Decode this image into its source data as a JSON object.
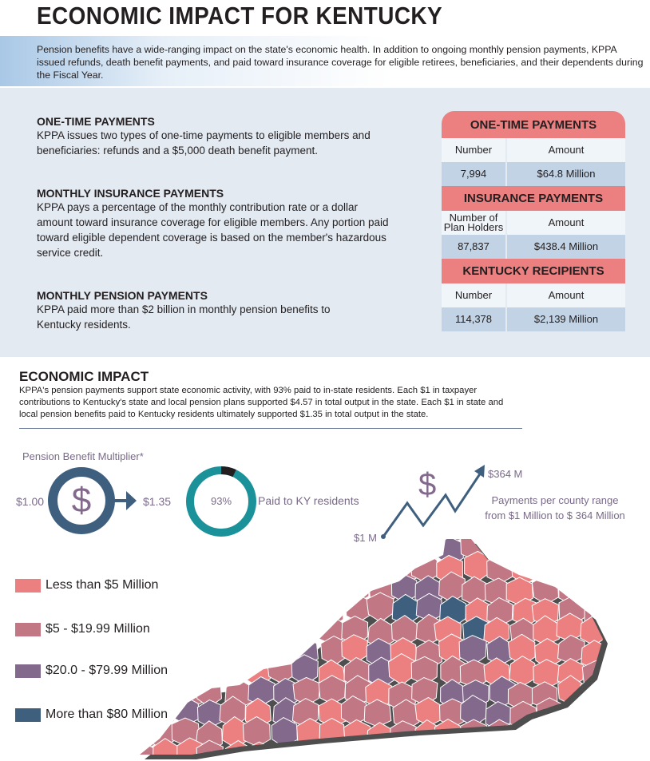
{
  "title": "ECONOMIC IMPACT FOR KENTUCKY",
  "intro": "Pension benefits have a wide-ranging impact on the state's economic health. In addition to ongoing monthly pension payments, KPPA issued refunds, death benefit payments, and paid toward insurance coverage for eligible retirees, beneficiaries, and their dependents during the Fiscal Year.",
  "sections": [
    {
      "heading": "ONE-TIME PAYMENTS",
      "body": "KPPA issues two types of one-time payments to eligible members and beneficiaries: refunds and a $5,000 death benefit payment."
    },
    {
      "heading": "MONTHLY INSURANCE PAYMENTS",
      "body": "KPPA pays a percentage of the monthly contribution rate or a dollar amount toward insurance coverage for eligible members. Any portion paid toward eligible dependent coverage is based on the member's hazardous service credit."
    },
    {
      "heading": "MONTHLY PENSION PAYMENTS",
      "body": "KPPA paid more than $2 billion in monthly pension benefits to Kentucky residents."
    }
  ],
  "tables": [
    {
      "title": "ONE-TIME PAYMENTS",
      "col1": "Number",
      "col2": "Amount",
      "number": "7,994",
      "amount": "$64.8 Million"
    },
    {
      "title": "INSURANCE PAYMENTS",
      "col1": "Number of Plan Holders",
      "col2": "Amount",
      "number": "87,837",
      "amount": "$438.4 Million"
    },
    {
      "title": "KENTUCKY RECIPIENTS",
      "col1": "Number",
      "col2": "Amount",
      "number": "114,378",
      "amount": "$2,139 Million"
    }
  ],
  "impact": {
    "heading": "ECONOMIC IMPACT",
    "body": "KPPA's pension payments support state economic activity, with 93% paid to in-state residents. Each $1 in taxpayer contributions to Kentucky's state and local pension plans supported $4.57 in total output in the state. Each $1 in state and local pension benefits paid to Kentucky residents ultimately supported $1.35 in total output in the state."
  },
  "multiplier": {
    "label": "Pension Benefit Multiplier*",
    "from": "$1.00",
    "symbol": "$",
    "to": "$1.35"
  },
  "donut": {
    "percent_label": "93%",
    "value": 93,
    "caption": "Paid to KY residents"
  },
  "range": {
    "low": "$1 M",
    "high": "$364 M",
    "symbol": "$",
    "caption1": "Payments per county range",
    "caption2": "from $1 Million to $ 364 Million"
  },
  "legend": [
    {
      "label": "Less than $5 Million",
      "color": "#ec8080"
    },
    {
      "label": "$5 - $19.99 Million",
      "color": "#c27784"
    },
    {
      "label": "$20.0 - $79.99 Million",
      "color": "#836a8d"
    },
    {
      "label": "More than $80 Million",
      "color": "#3e5f7e"
    }
  ]
}
